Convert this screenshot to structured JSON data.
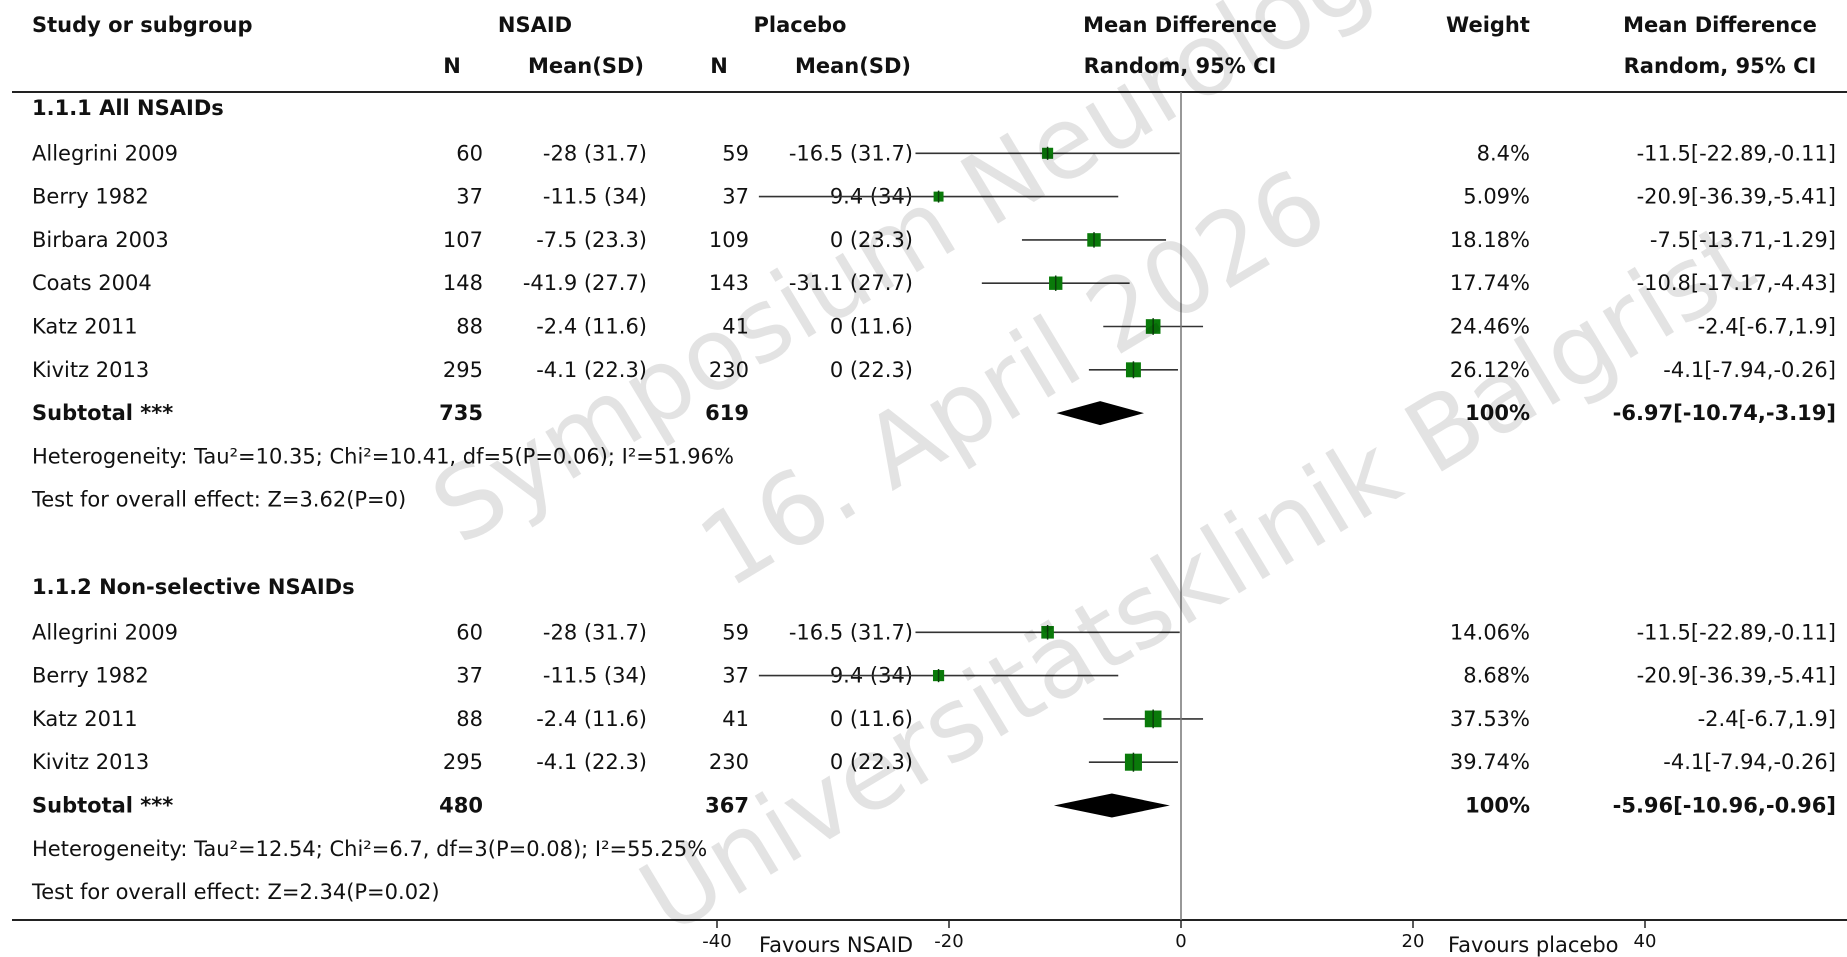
{
  "headers": {
    "study": "Study or subgroup",
    "group1": "NSAID",
    "group2": "Placebo",
    "n": "N",
    "mean_sd": "Mean(SD)",
    "md_plot": "Mean Difference",
    "md_plot_sub": "Random, 95% CI",
    "weight": "Weight",
    "md_text": "Mean Difference",
    "md_text_sub": "Random, 95% CI"
  },
  "watermark": {
    "line1": "Symposium Neurologie",
    "line2": "16. April 2026",
    "line3": "Universitätsklinik Balgrist"
  },
  "axis": {
    "ticks": [
      "-40",
      "-20",
      "0",
      "20",
      "40"
    ],
    "favours_left": "Favours NSAID",
    "favours_right": "Favours placebo"
  },
  "colors": {
    "marker": "#0a7a0a",
    "diamond": "#000000",
    "line": "#333333"
  },
  "chart_data": {
    "type": "forest",
    "xlim": [
      -40,
      40
    ],
    "subgroups": [
      {
        "title": "1.1.1 All NSAIDs",
        "studies": [
          {
            "name": "Allegrini 2009",
            "n1": "60",
            "m1": "-28 (31.7)",
            "n2": "59",
            "m2": "-16.5 (31.7)",
            "weight": "8.4%",
            "ci_text": "-11.5[-22.89,-0.11]",
            "md": -11.5,
            "lo": -22.89,
            "hi": -0.11,
            "w": 8.4
          },
          {
            "name": "Berry 1982",
            "n1": "37",
            "m1": "-11.5 (34)",
            "n2": "37",
            "m2": "9.4 (34)",
            "weight": "5.09%",
            "ci_text": "-20.9[-36.39,-5.41]",
            "md": -20.9,
            "lo": -36.39,
            "hi": -5.41,
            "w": 5.09
          },
          {
            "name": "Birbara 2003",
            "n1": "107",
            "m1": "-7.5 (23.3)",
            "n2": "109",
            "m2": "0 (23.3)",
            "weight": "18.18%",
            "ci_text": "-7.5[-13.71,-1.29]",
            "md": -7.5,
            "lo": -13.71,
            "hi": -1.29,
            "w": 18.18
          },
          {
            "name": "Coats 2004",
            "n1": "148",
            "m1": "-41.9 (27.7)",
            "n2": "143",
            "m2": "-31.1 (27.7)",
            "weight": "17.74%",
            "ci_text": "-10.8[-17.17,-4.43]",
            "md": -10.8,
            "lo": -17.17,
            "hi": -4.43,
            "w": 17.74
          },
          {
            "name": "Katz 2011",
            "n1": "88",
            "m1": "-2.4 (11.6)",
            "n2": "41",
            "m2": "0 (11.6)",
            "weight": "24.46%",
            "ci_text": "-2.4[-6.7,1.9]",
            "md": -2.4,
            "lo": -6.7,
            "hi": 1.9,
            "w": 24.46
          },
          {
            "name": "Kivitz 2013",
            "n1": "295",
            "m1": "-4.1 (22.3)",
            "n2": "230",
            "m2": "0 (22.3)",
            "weight": "26.12%",
            "ci_text": "-4.1[-7.94,-0.26]",
            "md": -4.1,
            "lo": -7.94,
            "hi": -0.26,
            "w": 26.12
          }
        ],
        "subtotal": {
          "label": "Subtotal ***",
          "n1": "735",
          "n2": "619",
          "weight": "100%",
          "ci_text": "-6.97[-10.74,-3.19]",
          "md": -6.97,
          "lo": -10.74,
          "hi": -3.19
        },
        "heterogeneity": "Heterogeneity: Tau²=10.35; Chi²=10.41, df=5(P=0.06); I²=51.96%",
        "overall": "Test for overall effect: Z=3.62(P=0)"
      },
      {
        "title": "1.1.2 Non-selective NSAIDs",
        "studies": [
          {
            "name": "Allegrini 2009",
            "n1": "60",
            "m1": "-28 (31.7)",
            "n2": "59",
            "m2": "-16.5 (31.7)",
            "weight": "14.06%",
            "ci_text": "-11.5[-22.89,-0.11]",
            "md": -11.5,
            "lo": -22.89,
            "hi": -0.11,
            "w": 14.06
          },
          {
            "name": "Berry 1982",
            "n1": "37",
            "m1": "-11.5 (34)",
            "n2": "37",
            "m2": "9.4 (34)",
            "weight": "8.68%",
            "ci_text": "-20.9[-36.39,-5.41]",
            "md": -20.9,
            "lo": -36.39,
            "hi": -5.41,
            "w": 8.68
          },
          {
            "name": "Katz 2011",
            "n1": "88",
            "m1": "-2.4 (11.6)",
            "n2": "41",
            "m2": "0 (11.6)",
            "weight": "37.53%",
            "ci_text": "-2.4[-6.7,1.9]",
            "md": -2.4,
            "lo": -6.7,
            "hi": 1.9,
            "w": 37.53
          },
          {
            "name": "Kivitz 2013",
            "n1": "295",
            "m1": "-4.1 (22.3)",
            "n2": "230",
            "m2": "0 (22.3)",
            "weight": "39.74%",
            "ci_text": "-4.1[-7.94,-0.26]",
            "md": -4.1,
            "lo": -7.94,
            "hi": -0.26,
            "w": 39.74
          }
        ],
        "subtotal": {
          "label": "Subtotal ***",
          "n1": "480",
          "n2": "367",
          "weight": "100%",
          "ci_text": "-5.96[-10.96,-0.96]",
          "md": -5.96,
          "lo": -10.96,
          "hi": -0.96
        },
        "heterogeneity": "Heterogeneity: Tau²=12.54; Chi²=6.7, df=3(P=0.08); I²=55.25%",
        "overall": "Test for overall effect: Z=2.34(P=0.02)"
      }
    ]
  }
}
